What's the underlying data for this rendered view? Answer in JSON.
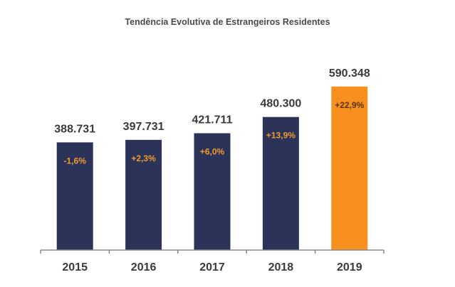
{
  "chart_data": {
    "type": "bar",
    "title": "Tendência Evolutiva de Estrangeiros Residentes",
    "categories": [
      "2015",
      "2016",
      "2017",
      "2018",
      "2019"
    ],
    "values": [
      388731,
      397731,
      421711,
      480300,
      590348
    ],
    "value_labels": [
      "388.731",
      "397.731",
      "421.711",
      "480.300",
      "590.348"
    ],
    "change_labels": [
      "-1,6%",
      "+2,3%",
      "+6,0%",
      "+13,9%",
      "+22,9%"
    ],
    "ylim": [
      0,
      650000
    ],
    "grid": false,
    "legend": "none",
    "colors": {
      "bar": "#2b3358",
      "highlight_bar": "#f7901e",
      "change_text": "#f39a2e",
      "change_text_on_highlight": "#5a3410",
      "axis": "#888888"
    },
    "highlight_index": 4
  }
}
